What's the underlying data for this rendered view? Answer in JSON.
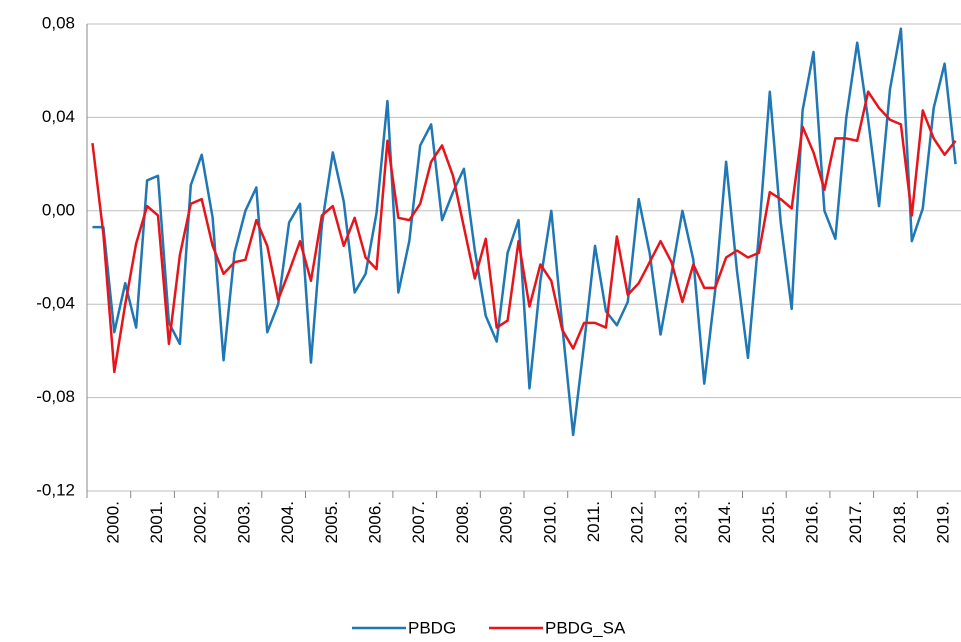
{
  "chart_data": {
    "type": "line",
    "categories": [
      "2000.",
      null,
      null,
      null,
      "2001.",
      null,
      null,
      null,
      "2002.",
      null,
      null,
      null,
      "2003.",
      null,
      null,
      null,
      "2004.",
      null,
      null,
      null,
      "2005.",
      null,
      null,
      null,
      "2006.",
      null,
      null,
      null,
      "2007.",
      null,
      null,
      null,
      "2008.",
      null,
      null,
      null,
      "2009.",
      null,
      null,
      null,
      "2010.",
      null,
      null,
      null,
      "2011.",
      null,
      null,
      null,
      "2012.",
      null,
      null,
      null,
      "2013.",
      null,
      null,
      null,
      "2014.",
      null,
      null,
      null,
      "2015.",
      null,
      null,
      null,
      "2016.",
      null,
      null,
      null,
      "2017.",
      null,
      null,
      null,
      "2018.",
      null,
      null,
      null,
      "2019.",
      null,
      null,
      null
    ],
    "series": [
      {
        "name": "PBDG",
        "color": "#1f77b4",
        "values": [
          -0.007,
          -0.007,
          -0.052,
          -0.031,
          -0.05,
          0.013,
          0.015,
          -0.048,
          -0.057,
          0.011,
          0.024,
          -0.003,
          -0.064,
          -0.018,
          0.0,
          0.01,
          -0.052,
          -0.04,
          -0.005,
          0.003,
          -0.065,
          -0.006,
          0.025,
          0.004,
          -0.035,
          -0.027,
          -0.001,
          0.047,
          -0.035,
          -0.013,
          0.028,
          0.037,
          -0.004,
          0.008,
          0.018,
          -0.017,
          -0.045,
          -0.056,
          -0.018,
          -0.004,
          -0.076,
          -0.03,
          0.0,
          -0.049,
          -0.096,
          -0.057,
          -0.015,
          -0.043,
          -0.049,
          -0.039,
          0.005,
          -0.018,
          -0.053,
          -0.027,
          0.0,
          -0.021,
          -0.074,
          -0.034,
          0.021,
          -0.026,
          -0.063,
          -0.01,
          0.051,
          -0.005,
          -0.042,
          0.043,
          0.068,
          0.0,
          -0.012,
          0.04,
          0.072,
          0.039,
          0.002,
          0.052,
          0.078,
          -0.013,
          0.001,
          0.044,
          0.063,
          0.02
        ]
      },
      {
        "name": "PBDG_SA",
        "color": "#e8141b",
        "values": [
          0.029,
          -0.01,
          -0.069,
          -0.04,
          -0.014,
          0.002,
          -0.002,
          -0.057,
          -0.019,
          0.003,
          0.005,
          -0.015,
          -0.027,
          -0.022,
          -0.021,
          -0.004,
          -0.015,
          -0.038,
          -0.026,
          -0.013,
          -0.03,
          -0.002,
          0.002,
          -0.015,
          -0.003,
          -0.02,
          -0.025,
          0.03,
          -0.003,
          -0.004,
          0.003,
          0.021,
          0.028,
          0.015,
          -0.007,
          -0.029,
          -0.012,
          -0.05,
          -0.047,
          -0.013,
          -0.041,
          -0.023,
          -0.03,
          -0.051,
          -0.059,
          -0.048,
          -0.048,
          -0.05,
          -0.011,
          -0.036,
          -0.031,
          -0.022,
          -0.013,
          -0.022,
          -0.039,
          -0.023,
          -0.033,
          -0.033,
          -0.02,
          -0.017,
          -0.02,
          -0.018,
          0.008,
          0.005,
          0.001,
          0.036,
          0.025,
          0.009,
          0.031,
          0.031,
          0.03,
          0.051,
          0.044,
          0.039,
          0.037,
          -0.002,
          0.043,
          0.031,
          0.024,
          0.03
        ]
      }
    ],
    "ylim": [
      -0.12,
      0.08
    ],
    "yticks": [
      {
        "value": -0.12,
        "label": "-0,12"
      },
      {
        "value": -0.08,
        "label": "-0,08"
      },
      {
        "value": -0.04,
        "label": "-0,04"
      },
      {
        "value": 0,
        "label": "0,00"
      },
      {
        "value": 0.04,
        "label": "0,04"
      },
      {
        "value": 0.08,
        "label": "0,08"
      }
    ],
    "grid": true,
    "legend": "bottom"
  }
}
